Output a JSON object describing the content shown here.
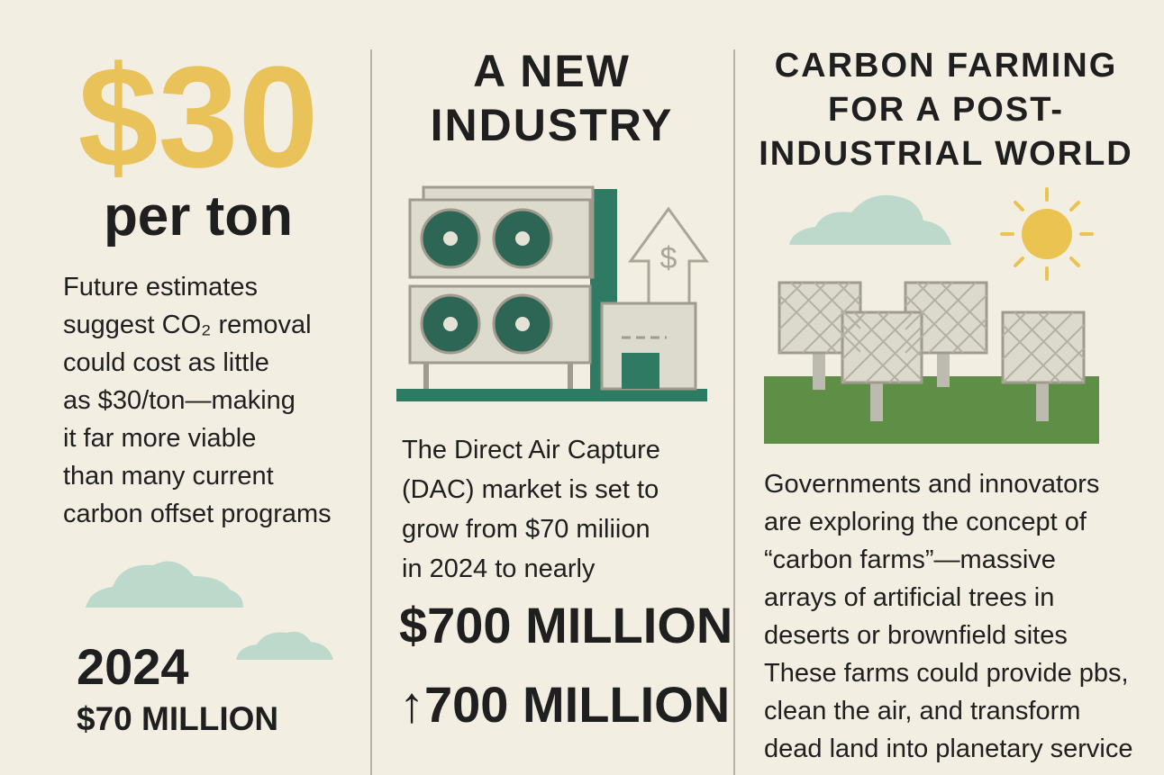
{
  "column1": {
    "price": "$30",
    "unit": "per ton",
    "body_lines": [
      "Future estimates",
      "suggest CO₂ removal",
      "could cost as little",
      "as $30/ton—making",
      "it far more viable",
      "than many current",
      "carbon offset programs"
    ],
    "year": "2024",
    "amount": "$70 MILLION"
  },
  "column2": {
    "title_lines": [
      "A NEW",
      "INDUSTRY"
    ],
    "body_lines": [
      "The Direct Air Capture",
      "(DAC) market is set to",
      "grow from $70 miliion",
      "in 2024 to nearly"
    ],
    "highlight": "$700 MILLION",
    "highlight_repeat": "↑700 MILLION"
  },
  "column3": {
    "title_lines": [
      "CARBON FARMING",
      "FOR A POST-",
      "INDUSTRIAL WORLD"
    ],
    "body_lines": [
      "Governments and innovators",
      "are exploring the concept of",
      "“carbon farms”—massive",
      "arrays of artificial trees in",
      "deserts or brownfield sites",
      "These farms could provide pbs,",
      "clean the air, and transform",
      "dead land into planetary service"
    ]
  }
}
